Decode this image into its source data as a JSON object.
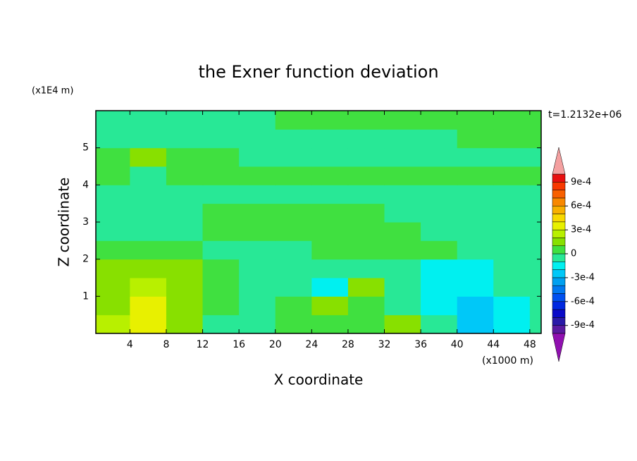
{
  "chart_data": {
    "type": "contour",
    "title": "the Exner function deviation",
    "xlabel": "X coordinate",
    "ylabel": "Z coordinate",
    "x_unit": "(x1000 m)",
    "y_unit": "(x1E4 m)",
    "annotation": "t=1.2132e+06",
    "xlim": [
      0.25,
      49.25
    ],
    "ylim": [
      0,
      6
    ],
    "xticks": [
      4,
      8,
      12,
      16,
      20,
      24,
      28,
      32,
      36,
      40,
      44,
      48
    ],
    "yticks": [
      1,
      2,
      3,
      4,
      5
    ],
    "x_edges": [
      0.25,
      4,
      8,
      12,
      16,
      20,
      24,
      28,
      32,
      36,
      40,
      44,
      48,
      49.25
    ],
    "y_edges": [
      0,
      0.5,
      1,
      1.5,
      2,
      2.5,
      3,
      3.5,
      4,
      4.5,
      5,
      5.5,
      6
    ],
    "z": [
      [
        0.00025,
        0.00035,
        0.00015,
        -5e-05,
        -5e-05,
        5e-05,
        5e-05,
        5e-05,
        0.00015,
        -5e-05,
        -0.00025,
        -0.00015,
        -5e-05
      ],
      [
        0.00015,
        0.00035,
        0.00015,
        5e-05,
        -5e-05,
        5e-05,
        0.00015,
        5e-05,
        -5e-05,
        -0.00015,
        -0.00025,
        -0.00015,
        -5e-05
      ],
      [
        0.00015,
        0.00025,
        0.00015,
        5e-05,
        -5e-05,
        -5e-05,
        -0.00015,
        0.00015,
        -5e-05,
        -0.00015,
        -0.00015,
        -5e-05,
        -5e-05
      ],
      [
        0.00015,
        0.00015,
        0.00015,
        5e-05,
        -5e-05,
        -5e-05,
        -5e-05,
        -5e-05,
        -5e-05,
        -0.00015,
        -0.00015,
        -5e-05,
        -5e-05
      ],
      [
        5e-05,
        5e-05,
        5e-05,
        -5e-05,
        -5e-05,
        -5e-05,
        5e-05,
        5e-05,
        5e-05,
        5e-05,
        -5e-05,
        -5e-05,
        -5e-05
      ],
      [
        -5e-05,
        -5e-05,
        -5e-05,
        5e-05,
        5e-05,
        5e-05,
        5e-05,
        5e-05,
        5e-05,
        -5e-05,
        -5e-05,
        -5e-05,
        -5e-05
      ],
      [
        -5e-05,
        -5e-05,
        -5e-05,
        5e-05,
        5e-05,
        5e-05,
        5e-05,
        5e-05,
        -5e-05,
        -5e-05,
        -5e-05,
        -5e-05,
        -5e-05
      ],
      [
        -5e-05,
        -5e-05,
        -5e-05,
        -5e-05,
        -5e-05,
        -5e-05,
        -5e-05,
        -5e-05,
        -5e-05,
        -5e-05,
        -5e-05,
        -5e-05,
        -5e-05
      ],
      [
        5e-05,
        -5e-05,
        5e-05,
        5e-05,
        5e-05,
        5e-05,
        5e-05,
        5e-05,
        5e-05,
        5e-05,
        5e-05,
        5e-05,
        5e-05
      ],
      [
        5e-05,
        0.00015,
        5e-05,
        5e-05,
        -5e-05,
        -5e-05,
        -5e-05,
        -5e-05,
        -5e-05,
        -5e-05,
        -5e-05,
        -5e-05,
        -5e-05
      ],
      [
        -5e-05,
        -5e-05,
        -5e-05,
        -5e-05,
        -5e-05,
        -5e-05,
        -5e-05,
        -5e-05,
        -5e-05,
        -5e-05,
        5e-05,
        5e-05,
        5e-05
      ],
      [
        -5e-05,
        -5e-05,
        -5e-05,
        -5e-05,
        -5e-05,
        5e-05,
        5e-05,
        5e-05,
        5e-05,
        5e-05,
        5e-05,
        5e-05,
        5e-05
      ]
    ],
    "levels": [
      -0.001,
      -0.0009,
      -0.0008,
      -0.0007,
      -0.0006,
      -0.0005,
      -0.0004,
      -0.0003,
      -0.0002,
      -0.0001,
      0,
      0.0001,
      0.0002,
      0.0003,
      0.0004,
      0.0005,
      0.0006,
      0.0007,
      0.0008,
      0.0009,
      0.001
    ],
    "colors": [
      "#5a1aa0",
      "#2a1aa8",
      "#0a0ac8",
      "#0028e0",
      "#0050f0",
      "#0078f0",
      "#00a0f0",
      "#00c8f8",
      "#00f0f0",
      "#28e896",
      "#40e040",
      "#88e000",
      "#b8f000",
      "#e8f000",
      "#f8d800",
      "#f8b000",
      "#f88800",
      "#f86000",
      "#f83800",
      "#e81010"
    ],
    "extend_colors": {
      "under": "#9010b0",
      "over": "#f4a0a0"
    },
    "colorbar_ticks": [
      {
        "value": -0.0009,
        "label": "-9e-4"
      },
      {
        "value": -0.0006,
        "label": "-6e-4"
      },
      {
        "value": -0.0003,
        "label": "-3e-4"
      },
      0,
      {
        "value": 0.0003,
        "label": "3e-4"
      },
      {
        "value": 0.0006,
        "label": "6e-4"
      },
      {
        "value": 0.0009,
        "label": "9e-4"
      }
    ]
  }
}
